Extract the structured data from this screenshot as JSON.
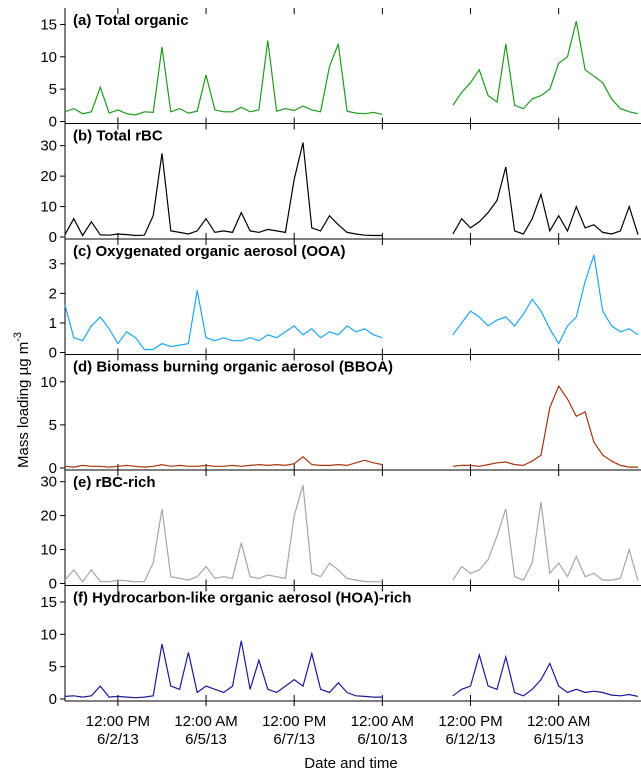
{
  "chart_data": {
    "type": "line",
    "x_label": "Date and  time",
    "y_label": "Mass loading µg m",
    "y_label_superscript": "-3",
    "x": [
      "2013-06-01 00:00",
      "2013-06-01 06:00",
      "2013-06-01 12:00",
      "2013-06-01 18:00",
      "2013-06-02 00:00",
      "2013-06-02 06:00",
      "2013-06-02 12:00",
      "2013-06-02 18:00",
      "2013-06-03 00:00",
      "2013-06-03 06:00",
      "2013-06-03 12:00",
      "2013-06-03 18:00",
      "2013-06-04 00:00",
      "2013-06-04 06:00",
      "2013-06-04 12:00",
      "2013-06-04 18:00",
      "2013-06-05 00:00",
      "2013-06-05 06:00",
      "2013-06-05 12:00",
      "2013-06-05 18:00",
      "2013-06-06 00:00",
      "2013-06-06 06:00",
      "2013-06-06 12:00",
      "2013-06-06 18:00",
      "2013-06-07 00:00",
      "2013-06-07 06:00",
      "2013-06-07 12:00",
      "2013-06-07 18:00",
      "2013-06-08 00:00",
      "2013-06-08 06:00",
      "2013-06-08 12:00",
      "2013-06-08 18:00",
      "2013-06-09 00:00",
      "2013-06-09 06:00",
      "2013-06-09 12:00",
      "2013-06-09 18:00",
      "2013-06-10 00:00",
      "2013-06-10 06:00",
      "2013-06-10 12:00",
      "2013-06-10 18:00",
      "2013-06-11 00:00",
      "2013-06-11 06:00",
      "2013-06-11 12:00",
      "2013-06-11 18:00",
      "2013-06-12 00:00",
      "2013-06-12 06:00",
      "2013-06-12 12:00",
      "2013-06-12 18:00",
      "2013-06-13 00:00",
      "2013-06-13 06:00",
      "2013-06-13 12:00",
      "2013-06-13 18:00",
      "2013-06-14 00:00",
      "2013-06-14 06:00",
      "2013-06-14 12:00",
      "2013-06-14 18:00",
      "2013-06-15 00:00",
      "2013-06-15 06:00",
      "2013-06-15 12:00",
      "2013-06-15 18:00",
      "2013-06-16 00:00",
      "2013-06-16 06:00",
      "2013-06-16 12:00",
      "2013-06-16 18:00",
      "2013-06-17 00:00",
      "2013-06-17 06:00"
    ],
    "xlim": [
      "2013-06-01 00:00",
      "2013-06-17 06:00"
    ],
    "xticks": [
      {
        "value": "2013-06-02 12:00",
        "label": "12:00 PM\n6/2/13"
      },
      {
        "value": "2013-06-05 00:00",
        "label": "12:00 AM\n6/5/13"
      },
      {
        "value": "2013-06-07 12:00",
        "label": "12:00 PM\n6/7/13"
      },
      {
        "value": "2013-06-10 00:00",
        "label": "12:00 AM\n6/10/13"
      },
      {
        "value": "2013-06-12 12:00",
        "label": "12:00 PM\n6/12/13"
      },
      {
        "value": "2013-06-15 00:00",
        "label": "12:00 AM\n6/15/13"
      }
    ],
    "panels": [
      {
        "title": "(a) Total organic",
        "color": "#1f9a1f",
        "ylim": [
          0,
          16
        ],
        "yticks": [
          0,
          5,
          10,
          15
        ],
        "values": [
          1.5,
          2,
          1.2,
          1.5,
          5.3,
          1.3,
          1.8,
          1.2,
          1,
          1.5,
          1.4,
          11.5,
          1.5,
          2,
          1.3,
          1.6,
          7.2,
          1.8,
          1.5,
          1.5,
          2.2,
          1.5,
          1.8,
          12.5,
          1.6,
          2,
          1.7,
          2.4,
          1.8,
          1.5,
          8.5,
          12,
          1.6,
          1.3,
          1.2,
          1.4,
          1.1,
          null,
          null,
          null,
          null,
          null,
          null,
          null,
          2.5,
          4.5,
          6,
          8,
          4,
          3,
          12,
          2.5,
          2,
          3.5,
          4,
          5,
          9,
          10,
          15.5,
          8,
          7,
          6,
          3.5,
          2,
          1.5,
          1.2
        ]
      },
      {
        "title": "(b) Total rBC",
        "color": "#000000",
        "ylim": [
          0,
          34
        ],
        "yticks": [
          0,
          10,
          20,
          30
        ],
        "values": [
          0.8,
          6,
          0.5,
          5,
          0.7,
          0.6,
          1,
          0.8,
          0.5,
          0.6,
          7,
          27.5,
          2,
          1.5,
          1,
          2,
          6,
          1.5,
          2,
          1.5,
          8,
          2,
          1.5,
          2.5,
          2,
          1.5,
          19,
          31,
          3,
          2,
          7,
          4,
          1.5,
          1,
          0.6,
          0.5,
          0.5,
          null,
          null,
          null,
          null,
          null,
          null,
          null,
          1,
          6,
          3,
          5,
          8,
          12,
          23,
          2,
          1,
          6,
          14,
          2,
          7,
          2,
          10,
          3,
          4,
          1.5,
          1,
          2,
          10,
          0.8
        ]
      },
      {
        "title": "(c) Oxygenated organic aerosol (OOA)",
        "color": "#1ea7ef",
        "ylim": [
          0,
          3.5
        ],
        "yticks": [
          0,
          1,
          2,
          3
        ],
        "values": [
          1.6,
          0.5,
          0.4,
          0.9,
          1.2,
          0.8,
          0.3,
          0.7,
          0.5,
          0.1,
          0.1,
          0.3,
          0.2,
          0.25,
          0.3,
          2.1,
          0.5,
          0.4,
          0.5,
          0.4,
          0.4,
          0.5,
          0.4,
          0.6,
          0.5,
          0.7,
          0.9,
          0.6,
          0.8,
          0.5,
          0.7,
          0.6,
          0.9,
          0.7,
          0.8,
          0.6,
          0.5,
          null,
          null,
          null,
          null,
          null,
          null,
          null,
          0.6,
          1,
          1.4,
          1.2,
          0.9,
          1.1,
          1.2,
          0.9,
          1.3,
          1.8,
          1.4,
          0.8,
          0.3,
          0.9,
          1.2,
          2.4,
          3.3,
          1.4,
          0.9,
          0.7,
          0.8,
          0.6
        ]
      },
      {
        "title": "(d) Biomass burning organic aerosol (BBOA)",
        "color": "#a3360f",
        "ylim": [
          0,
          12
        ],
        "yticks": [
          0,
          5,
          10
        ],
        "values": [
          0.2,
          0.1,
          0.3,
          0.2,
          0.2,
          0.1,
          0.2,
          0.3,
          0.2,
          0.1,
          0.2,
          0.4,
          0.2,
          0.3,
          0.2,
          0.2,
          0.3,
          0.2,
          0.2,
          0.3,
          0.2,
          0.3,
          0.4,
          0.3,
          0.4,
          0.3,
          0.5,
          1.3,
          0.4,
          0.3,
          0.3,
          0.4,
          0.3,
          0.6,
          0.9,
          0.6,
          0.4,
          null,
          null,
          null,
          null,
          null,
          null,
          null,
          0.2,
          0.3,
          0.3,
          0.2,
          0.4,
          0.6,
          0.7,
          0.4,
          0.3,
          0.8,
          1.5,
          7,
          9.5,
          8,
          6,
          6.5,
          3,
          1.5,
          0.8,
          0.3,
          0.1,
          0.1
        ]
      },
      {
        "title": "(e) rBC-rich",
        "color": "#a6a6a6",
        "ylim": [
          0,
          30.5
        ],
        "yticks": [
          0,
          10,
          20,
          30
        ],
        "values": [
          1,
          4,
          0.5,
          4,
          0.6,
          0.5,
          1,
          0.8,
          0.5,
          0.6,
          6,
          22,
          2,
          1.5,
          1,
          2,
          5,
          1.5,
          2,
          1.5,
          12,
          2,
          1.5,
          2.5,
          2,
          1.5,
          20,
          29,
          3,
          2,
          6,
          4,
          1.5,
          1,
          0.6,
          0.5,
          0.5,
          null,
          null,
          null,
          null,
          null,
          null,
          null,
          1,
          5,
          3,
          4,
          7,
          14,
          22,
          2,
          1,
          6,
          24,
          3,
          6,
          2,
          8,
          2,
          3,
          1,
          1,
          1.5,
          10,
          0.8
        ]
      },
      {
        "title": "(f) Hydrocarbon-like organic aerosol (HOA)-rich",
        "color": "#1a1a96",
        "ylim": [
          0,
          16
        ],
        "yticks": [
          0,
          5,
          10,
          15
        ],
        "values": [
          0.4,
          0.5,
          0.3,
          0.5,
          2,
          0.3,
          0.4,
          0.3,
          0.2,
          0.3,
          0.5,
          8.5,
          2,
          1.5,
          7.2,
          1,
          2,
          1.5,
          1,
          2,
          9,
          1.5,
          6,
          1.5,
          1,
          2,
          3,
          2,
          7,
          1.5,
          1,
          2.5,
          1,
          0.5,
          0.4,
          0.3,
          0.3,
          null,
          null,
          null,
          null,
          null,
          null,
          null,
          0.5,
          1.5,
          2,
          6.8,
          2,
          1.5,
          6.5,
          1,
          0.5,
          1.5,
          3,
          5.5,
          2,
          1,
          1.5,
          1,
          1.2,
          1,
          0.6,
          0.5,
          0.7,
          0.4
        ]
      }
    ]
  }
}
